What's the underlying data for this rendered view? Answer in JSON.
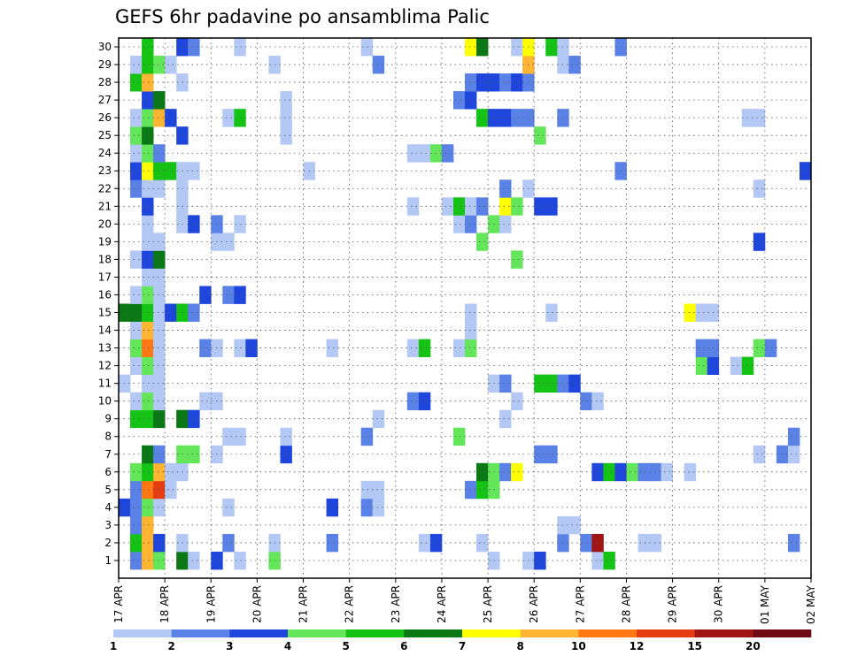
{
  "chart_data": {
    "type": "heatmap",
    "title": "GEFS 6hr padavine po ansamblima Palic",
    "xlabel": "",
    "ylabel": "",
    "x_tick_labels": [
      "17 APR",
      "18 APR",
      "19 APR",
      "20 APR",
      "21 APR",
      "22 APR",
      "23 APR",
      "24 APR",
      "25 APR",
      "26 APR",
      "27 APR",
      "28 APR",
      "29 APR",
      "30 APR",
      "01 MAY",
      "02 MAY"
    ],
    "y_tick_labels": [
      "1",
      "2",
      "3",
      "4",
      "5",
      "6",
      "7",
      "8",
      "9",
      "10",
      "11",
      "12",
      "13",
      "14",
      "15",
      "16",
      "17",
      "18",
      "19",
      "20",
      "21",
      "22",
      "23",
      "24",
      "25",
      "26",
      "27",
      "28",
      "29",
      "30"
    ],
    "x_range_days": [
      0,
      15
    ],
    "step_hours": 6,
    "grid": true,
    "legend": {
      "placement": "bottom",
      "labels": [
        "1",
        "2",
        "3",
        "4",
        "5",
        "6",
        "7",
        "8",
        "10",
        "12",
        "15",
        "20"
      ],
      "colors": [
        "#b4c8f5",
        "#5a82e6",
        "#1e46dc",
        "#64e65a",
        "#14c314",
        "#0a7814",
        "#ffff00",
        "#ffb432",
        "#ff7814",
        "#e63c14",
        "#a01414",
        "#6e0a14"
      ]
    },
    "level_colors": {
      "1": "#b4c8f5",
      "2": "#5a82e6",
      "3": "#1e46dc",
      "4": "#64e65a",
      "5": "#14c314",
      "6": "#0a7814",
      "7": "#ffff00",
      "8": "#ffb432",
      "9": "#ff7814",
      "10": "#e63c14",
      "11": "#a01414",
      "12": "#6e0a14"
    },
    "cells_note_levels": "each member lists [time_step_index, color_level]",
    "members": {
      "1": [
        [
          1,
          2
        ],
        [
          2,
          8
        ],
        [
          3,
          4
        ],
        [
          5,
          6
        ],
        [
          6,
          1
        ],
        [
          8,
          3
        ],
        [
          10,
          1
        ],
        [
          13,
          4
        ],
        [
          32,
          1
        ],
        [
          35,
          1
        ],
        [
          36,
          3
        ],
        [
          41,
          1
        ],
        [
          42,
          5
        ]
      ],
      "2": [
        [
          1,
          5
        ],
        [
          2,
          8
        ],
        [
          3,
          3
        ],
        [
          5,
          1
        ],
        [
          9,
          2
        ],
        [
          13,
          1
        ],
        [
          18,
          2
        ],
        [
          26,
          1
        ],
        [
          27,
          3
        ],
        [
          31,
          1
        ],
        [
          38,
          2
        ],
        [
          40,
          2
        ],
        [
          41,
          11
        ],
        [
          45,
          1
        ],
        [
          46,
          1
        ],
        [
          58,
          2
        ]
      ],
      "3": [
        [
          1,
          2
        ],
        [
          2,
          8
        ],
        [
          38,
          1
        ],
        [
          39,
          1
        ]
      ],
      "4": [
        [
          0,
          3
        ],
        [
          1,
          2
        ],
        [
          2,
          4
        ],
        [
          3,
          1
        ],
        [
          9,
          1
        ],
        [
          18,
          3
        ],
        [
          21,
          2
        ],
        [
          22,
          1
        ]
      ],
      "5": [
        [
          1,
          2
        ],
        [
          2,
          9
        ],
        [
          3,
          10
        ],
        [
          4,
          1
        ],
        [
          21,
          1
        ],
        [
          22,
          1
        ],
        [
          30,
          2
        ],
        [
          31,
          5
        ],
        [
          32,
          4
        ]
      ],
      "6": [
        [
          1,
          4
        ],
        [
          2,
          5
        ],
        [
          3,
          8
        ],
        [
          4,
          1
        ],
        [
          5,
          1
        ],
        [
          31,
          6
        ],
        [
          32,
          4
        ],
        [
          33,
          2
        ],
        [
          34,
          7
        ],
        [
          41,
          3
        ],
        [
          42,
          5
        ],
        [
          43,
          3
        ],
        [
          44,
          4
        ],
        [
          45,
          2
        ],
        [
          46,
          2
        ],
        [
          47,
          1
        ],
        [
          49,
          1
        ]
      ],
      "7": [
        [
          2,
          6
        ],
        [
          3,
          2
        ],
        [
          5,
          4
        ],
        [
          6,
          4
        ],
        [
          8,
          1
        ],
        [
          14,
          3
        ],
        [
          36,
          2
        ],
        [
          37,
          2
        ],
        [
          55,
          1
        ],
        [
          57,
          2
        ],
        [
          58,
          1
        ]
      ],
      "8": [
        [
          9,
          1
        ],
        [
          10,
          1
        ],
        [
          14,
          1
        ],
        [
          21,
          2
        ],
        [
          29,
          4
        ],
        [
          58,
          2
        ]
      ],
      "9": [
        [
          1,
          5
        ],
        [
          2,
          5
        ],
        [
          3,
          6
        ],
        [
          5,
          6
        ],
        [
          6,
          3
        ],
        [
          22,
          1
        ],
        [
          33,
          1
        ]
      ],
      "10": [
        [
          1,
          1
        ],
        [
          2,
          4
        ],
        [
          3,
          1
        ],
        [
          7,
          1
        ],
        [
          8,
          1
        ],
        [
          25,
          2
        ],
        [
          26,
          3
        ],
        [
          34,
          1
        ],
        [
          40,
          2
        ],
        [
          41,
          1
        ]
      ],
      "11": [
        [
          0,
          1
        ],
        [
          2,
          1
        ],
        [
          3,
          1
        ],
        [
          32,
          1
        ],
        [
          33,
          2
        ],
        [
          36,
          5
        ],
        [
          37,
          5
        ],
        [
          38,
          2
        ],
        [
          39,
          3
        ]
      ],
      "12": [
        [
          1,
          1
        ],
        [
          2,
          4
        ],
        [
          3,
          1
        ],
        [
          50,
          4
        ],
        [
          51,
          3
        ],
        [
          53,
          1
        ],
        [
          54,
          5
        ]
      ],
      "13": [
        [
          1,
          4
        ],
        [
          2,
          9
        ],
        [
          3,
          1
        ],
        [
          7,
          2
        ],
        [
          8,
          1
        ],
        [
          10,
          1
        ],
        [
          11,
          3
        ],
        [
          18,
          1
        ],
        [
          25,
          1
        ],
        [
          26,
          5
        ],
        [
          29,
          1
        ],
        [
          30,
          4
        ],
        [
          50,
          2
        ],
        [
          51,
          2
        ],
        [
          55,
          4
        ],
        [
          56,
          2
        ]
      ],
      "14": [
        [
          1,
          1
        ],
        [
          2,
          8
        ],
        [
          3,
          1
        ],
        [
          30,
          1
        ]
      ],
      "15": [
        [
          0,
          6
        ],
        [
          1,
          6
        ],
        [
          2,
          5
        ],
        [
          3,
          1
        ],
        [
          4,
          3
        ],
        [
          5,
          5
        ],
        [
          6,
          2
        ],
        [
          30,
          1
        ],
        [
          37,
          1
        ],
        [
          49,
          7
        ],
        [
          50,
          1
        ],
        [
          51,
          1
        ]
      ],
      "16": [
        [
          1,
          1
        ],
        [
          2,
          4
        ],
        [
          3,
          1
        ],
        [
          7,
          3
        ],
        [
          9,
          2
        ],
        [
          10,
          3
        ]
      ],
      "17": [
        [
          2,
          1
        ],
        [
          3,
          1
        ]
      ],
      "18": [
        [
          1,
          1
        ],
        [
          2,
          3
        ],
        [
          3,
          6
        ],
        [
          34,
          4
        ]
      ],
      "19": [
        [
          2,
          1
        ],
        [
          3,
          1
        ],
        [
          8,
          1
        ],
        [
          9,
          1
        ],
        [
          31,
          4
        ],
        [
          55,
          3
        ]
      ],
      "20": [
        [
          2,
          1
        ],
        [
          5,
          1
        ],
        [
          6,
          3
        ],
        [
          8,
          2
        ],
        [
          10,
          1
        ],
        [
          29,
          1
        ],
        [
          30,
          2
        ],
        [
          32,
          4
        ],
        [
          33,
          1
        ]
      ],
      "21": [
        [
          2,
          3
        ],
        [
          5,
          1
        ],
        [
          25,
          1
        ],
        [
          28,
          1
        ],
        [
          29,
          5
        ],
        [
          30,
          1
        ],
        [
          31,
          2
        ],
        [
          33,
          7
        ],
        [
          34,
          4
        ],
        [
          36,
          3
        ],
        [
          37,
          3
        ]
      ],
      "22": [
        [
          1,
          2
        ],
        [
          2,
          1
        ],
        [
          3,
          1
        ],
        [
          5,
          1
        ],
        [
          33,
          2
        ],
        [
          35,
          1
        ],
        [
          55,
          1
        ]
      ],
      "23": [
        [
          1,
          3
        ],
        [
          2,
          7
        ],
        [
          3,
          5
        ],
        [
          4,
          5
        ],
        [
          5,
          1
        ],
        [
          6,
          1
        ],
        [
          16,
          1
        ],
        [
          43,
          2
        ],
        [
          59,
          3
        ]
      ],
      "24": [
        [
          1,
          1
        ],
        [
          2,
          4
        ],
        [
          3,
          2
        ],
        [
          25,
          1
        ],
        [
          26,
          1
        ],
        [
          27,
          4
        ],
        [
          28,
          2
        ]
      ],
      "25": [
        [
          1,
          4
        ],
        [
          2,
          6
        ],
        [
          5,
          3
        ],
        [
          14,
          1
        ],
        [
          36,
          4
        ]
      ],
      "26": [
        [
          1,
          1
        ],
        [
          2,
          4
        ],
        [
          3,
          8
        ],
        [
          4,
          3
        ],
        [
          9,
          1
        ],
        [
          10,
          5
        ],
        [
          14,
          1
        ],
        [
          31,
          5
        ],
        [
          32,
          3
        ],
        [
          33,
          3
        ],
        [
          34,
          2
        ],
        [
          35,
          2
        ],
        [
          38,
          2
        ],
        [
          54,
          1
        ],
        [
          55,
          1
        ]
      ],
      "27": [
        [
          2,
          3
        ],
        [
          3,
          6
        ],
        [
          14,
          1
        ],
        [
          29,
          2
        ],
        [
          30,
          3
        ]
      ],
      "28": [
        [
          1,
          5
        ],
        [
          2,
          8
        ],
        [
          5,
          1
        ],
        [
          30,
          2
        ],
        [
          31,
          3
        ],
        [
          32,
          3
        ],
        [
          33,
          2
        ],
        [
          34,
          3
        ],
        [
          35,
          2
        ]
      ],
      "29": [
        [
          1,
          1
        ],
        [
          2,
          5
        ],
        [
          3,
          4
        ],
        [
          4,
          1
        ],
        [
          13,
          1
        ],
        [
          22,
          2
        ],
        [
          35,
          8
        ],
        [
          38,
          1
        ],
        [
          39,
          2
        ]
      ],
      "30": [
        [
          2,
          5
        ],
        [
          5,
          3
        ],
        [
          6,
          2
        ],
        [
          10,
          1
        ],
        [
          21,
          1
        ],
        [
          30,
          7
        ],
        [
          31,
          6
        ],
        [
          34,
          1
        ],
        [
          35,
          7
        ],
        [
          37,
          5
        ],
        [
          38,
          1
        ],
        [
          43,
          2
        ]
      ]
    }
  }
}
